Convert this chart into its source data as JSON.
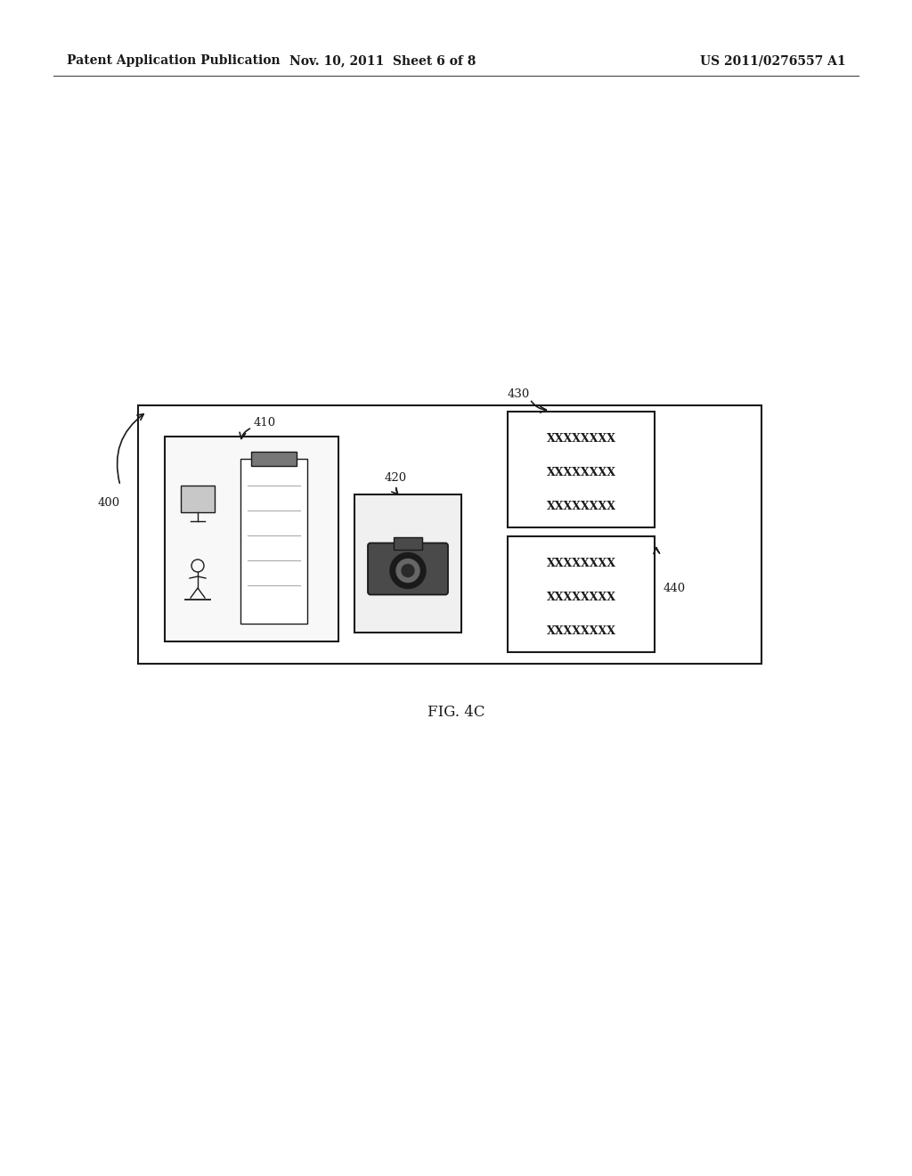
{
  "bg_color": "#ffffff",
  "header_left": "Patent Application Publication",
  "header_mid": "Nov. 10, 2011  Sheet 6 of 8",
  "header_right": "US 2011/0276557 A1",
  "figure_label": "FIG. 4C",
  "label_400": "400",
  "label_410": "410",
  "label_420": "420",
  "label_430": "430",
  "label_440": "440",
  "text_color": "#1a1a1a",
  "box_edge_color": "#1a1a1a",
  "x_text_lines": [
    "XXXXXXXX",
    "XXXXXXXX",
    "XXXXXXXX"
  ]
}
